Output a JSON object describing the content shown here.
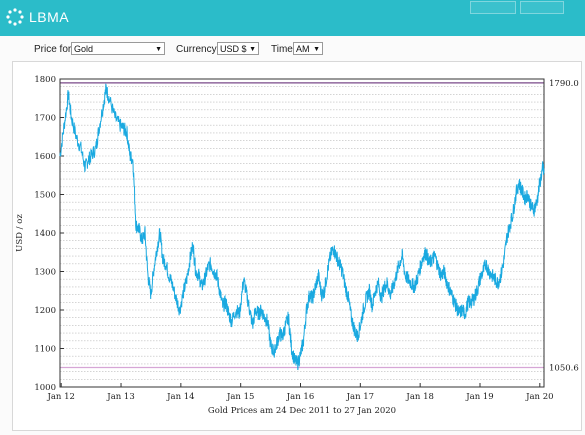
{
  "header": {
    "logo_text": "LBMA",
    "accent_color": "#2bbcc9"
  },
  "controls": {
    "price_for_label": "Price for",
    "price_for_value": "Gold",
    "currency_label": "Currency",
    "currency_value": "USD $",
    "time_label": "Time",
    "time_value": "AM"
  },
  "chart_data": {
    "type": "line",
    "ylabel": "USD / oz",
    "xlabel": "Gold Prices am 24 Dec 2011 to 27 Jan 2020",
    "ylim": [
      1000,
      1800
    ],
    "yticks": [
      "1000",
      "1100",
      "1200",
      "1300",
      "1400",
      "1500",
      "1600",
      "1700",
      "1800"
    ],
    "xticks": [
      "Jan 12",
      "Jan 13",
      "Jan 14",
      "Jan 15",
      "Jan 16",
      "Jan 17",
      "Jan 18",
      "Jan 19",
      "Jan 20"
    ],
    "x_start": 2011.98,
    "x_end": 2020.07,
    "max_label": "1790.0",
    "min_label": "1050.6",
    "max_value": 1790.0,
    "min_value": 1050.6,
    "grid": true,
    "line_color": "#1aa9e0",
    "series": [
      {
        "values": [
          [
            2011.98,
            1600
          ],
          [
            2012.05,
            1680
          ],
          [
            2012.12,
            1760
          ],
          [
            2012.17,
            1700
          ],
          [
            2012.25,
            1650
          ],
          [
            2012.33,
            1620
          ],
          [
            2012.4,
            1570
          ],
          [
            2012.45,
            1590
          ],
          [
            2012.5,
            1600
          ],
          [
            2012.58,
            1620
          ],
          [
            2012.63,
            1670
          ],
          [
            2012.7,
            1730
          ],
          [
            2012.75,
            1775
          ],
          [
            2012.8,
            1750
          ],
          [
            2012.9,
            1700
          ],
          [
            2012.98,
            1680
          ],
          [
            2013.05,
            1670
          ],
          [
            2013.1,
            1660
          ],
          [
            2013.15,
            1600
          ],
          [
            2013.2,
            1590
          ],
          [
            2013.25,
            1420
          ],
          [
            2013.3,
            1410
          ],
          [
            2013.35,
            1380
          ],
          [
            2013.4,
            1400
          ],
          [
            2013.45,
            1290
          ],
          [
            2013.5,
            1240
          ],
          [
            2013.55,
            1310
          ],
          [
            2013.6,
            1360
          ],
          [
            2013.65,
            1400
          ],
          [
            2013.7,
            1330
          ],
          [
            2013.75,
            1320
          ],
          [
            2013.8,
            1290
          ],
          [
            2013.85,
            1270
          ],
          [
            2013.92,
            1230
          ],
          [
            2013.98,
            1200
          ],
          [
            2014.05,
            1250
          ],
          [
            2014.1,
            1280
          ],
          [
            2014.15,
            1330
          ],
          [
            2014.2,
            1370
          ],
          [
            2014.25,
            1300
          ],
          [
            2014.3,
            1290
          ],
          [
            2014.35,
            1260
          ],
          [
            2014.4,
            1280
          ],
          [
            2014.45,
            1310
          ],
          [
            2014.5,
            1320
          ],
          [
            2014.55,
            1300
          ],
          [
            2014.6,
            1290
          ],
          [
            2014.65,
            1250
          ],
          [
            2014.7,
            1210
          ],
          [
            2014.75,
            1220
          ],
          [
            2014.8,
            1190
          ],
          [
            2014.85,
            1170
          ],
          [
            2014.92,
            1200
          ],
          [
            2014.98,
            1190
          ],
          [
            2015.05,
            1280
          ],
          [
            2015.1,
            1240
          ],
          [
            2015.15,
            1200
          ],
          [
            2015.2,
            1160
          ],
          [
            2015.25,
            1200
          ],
          [
            2015.3,
            1190
          ],
          [
            2015.35,
            1200
          ],
          [
            2015.4,
            1180
          ],
          [
            2015.45,
            1170
          ],
          [
            2015.5,
            1110
          ],
          [
            2015.55,
            1090
          ],
          [
            2015.6,
            1110
          ],
          [
            2015.65,
            1140
          ],
          [
            2015.7,
            1130
          ],
          [
            2015.75,
            1160
          ],
          [
            2015.8,
            1180
          ],
          [
            2015.85,
            1100
          ],
          [
            2015.9,
            1070
          ],
          [
            2015.95,
            1060
          ],
          [
            2016.0,
            1085
          ],
          [
            2016.05,
            1120
          ],
          [
            2016.1,
            1200
          ],
          [
            2016.15,
            1240
          ],
          [
            2016.2,
            1230
          ],
          [
            2016.25,
            1260
          ],
          [
            2016.3,
            1290
          ],
          [
            2016.35,
            1240
          ],
          [
            2016.4,
            1250
          ],
          [
            2016.45,
            1300
          ],
          [
            2016.5,
            1340
          ],
          [
            2016.55,
            1360
          ],
          [
            2016.6,
            1340
          ],
          [
            2016.65,
            1320
          ],
          [
            2016.7,
            1300
          ],
          [
            2016.75,
            1260
          ],
          [
            2016.8,
            1230
          ],
          [
            2016.85,
            1180
          ],
          [
            2016.9,
            1150
          ],
          [
            2016.95,
            1130
          ],
          [
            2017.0,
            1160
          ],
          [
            2017.05,
            1200
          ],
          [
            2017.1,
            1230
          ],
          [
            2017.15,
            1250
          ],
          [
            2017.2,
            1210
          ],
          [
            2017.25,
            1250
          ],
          [
            2017.3,
            1270
          ],
          [
            2017.35,
            1230
          ],
          [
            2017.4,
            1260
          ],
          [
            2017.45,
            1270
          ],
          [
            2017.5,
            1240
          ],
          [
            2017.55,
            1260
          ],
          [
            2017.6,
            1290
          ],
          [
            2017.65,
            1320
          ],
          [
            2017.7,
            1340
          ],
          [
            2017.75,
            1290
          ],
          [
            2017.8,
            1280
          ],
          [
            2017.85,
            1270
          ],
          [
            2017.9,
            1260
          ],
          [
            2017.95,
            1280
          ],
          [
            2018.0,
            1310
          ],
          [
            2018.05,
            1340
          ],
          [
            2018.1,
            1350
          ],
          [
            2018.15,
            1320
          ],
          [
            2018.2,
            1330
          ],
          [
            2018.25,
            1340
          ],
          [
            2018.3,
            1310
          ],
          [
            2018.35,
            1290
          ],
          [
            2018.4,
            1300
          ],
          [
            2018.45,
            1270
          ],
          [
            2018.5,
            1250
          ],
          [
            2018.55,
            1230
          ],
          [
            2018.6,
            1210
          ],
          [
            2018.65,
            1190
          ],
          [
            2018.7,
            1200
          ],
          [
            2018.75,
            1190
          ],
          [
            2018.8,
            1220
          ],
          [
            2018.85,
            1220
          ],
          [
            2018.9,
            1230
          ],
          [
            2018.95,
            1250
          ],
          [
            2019.0,
            1280
          ],
          [
            2019.05,
            1300
          ],
          [
            2019.1,
            1320
          ],
          [
            2019.15,
            1300
          ],
          [
            2019.2,
            1290
          ],
          [
            2019.25,
            1280
          ],
          [
            2019.3,
            1270
          ],
          [
            2019.35,
            1290
          ],
          [
            2019.4,
            1330
          ],
          [
            2019.45,
            1390
          ],
          [
            2019.5,
            1420
          ],
          [
            2019.55,
            1450
          ],
          [
            2019.6,
            1500
          ],
          [
            2019.65,
            1530
          ],
          [
            2019.7,
            1510
          ],
          [
            2019.75,
            1490
          ],
          [
            2019.8,
            1500
          ],
          [
            2019.85,
            1470
          ],
          [
            2019.9,
            1460
          ],
          [
            2019.95,
            1480
          ],
          [
            2020.0,
            1530
          ],
          [
            2020.05,
            1570
          ],
          [
            2020.07,
            1555
          ]
        ]
      }
    ]
  }
}
